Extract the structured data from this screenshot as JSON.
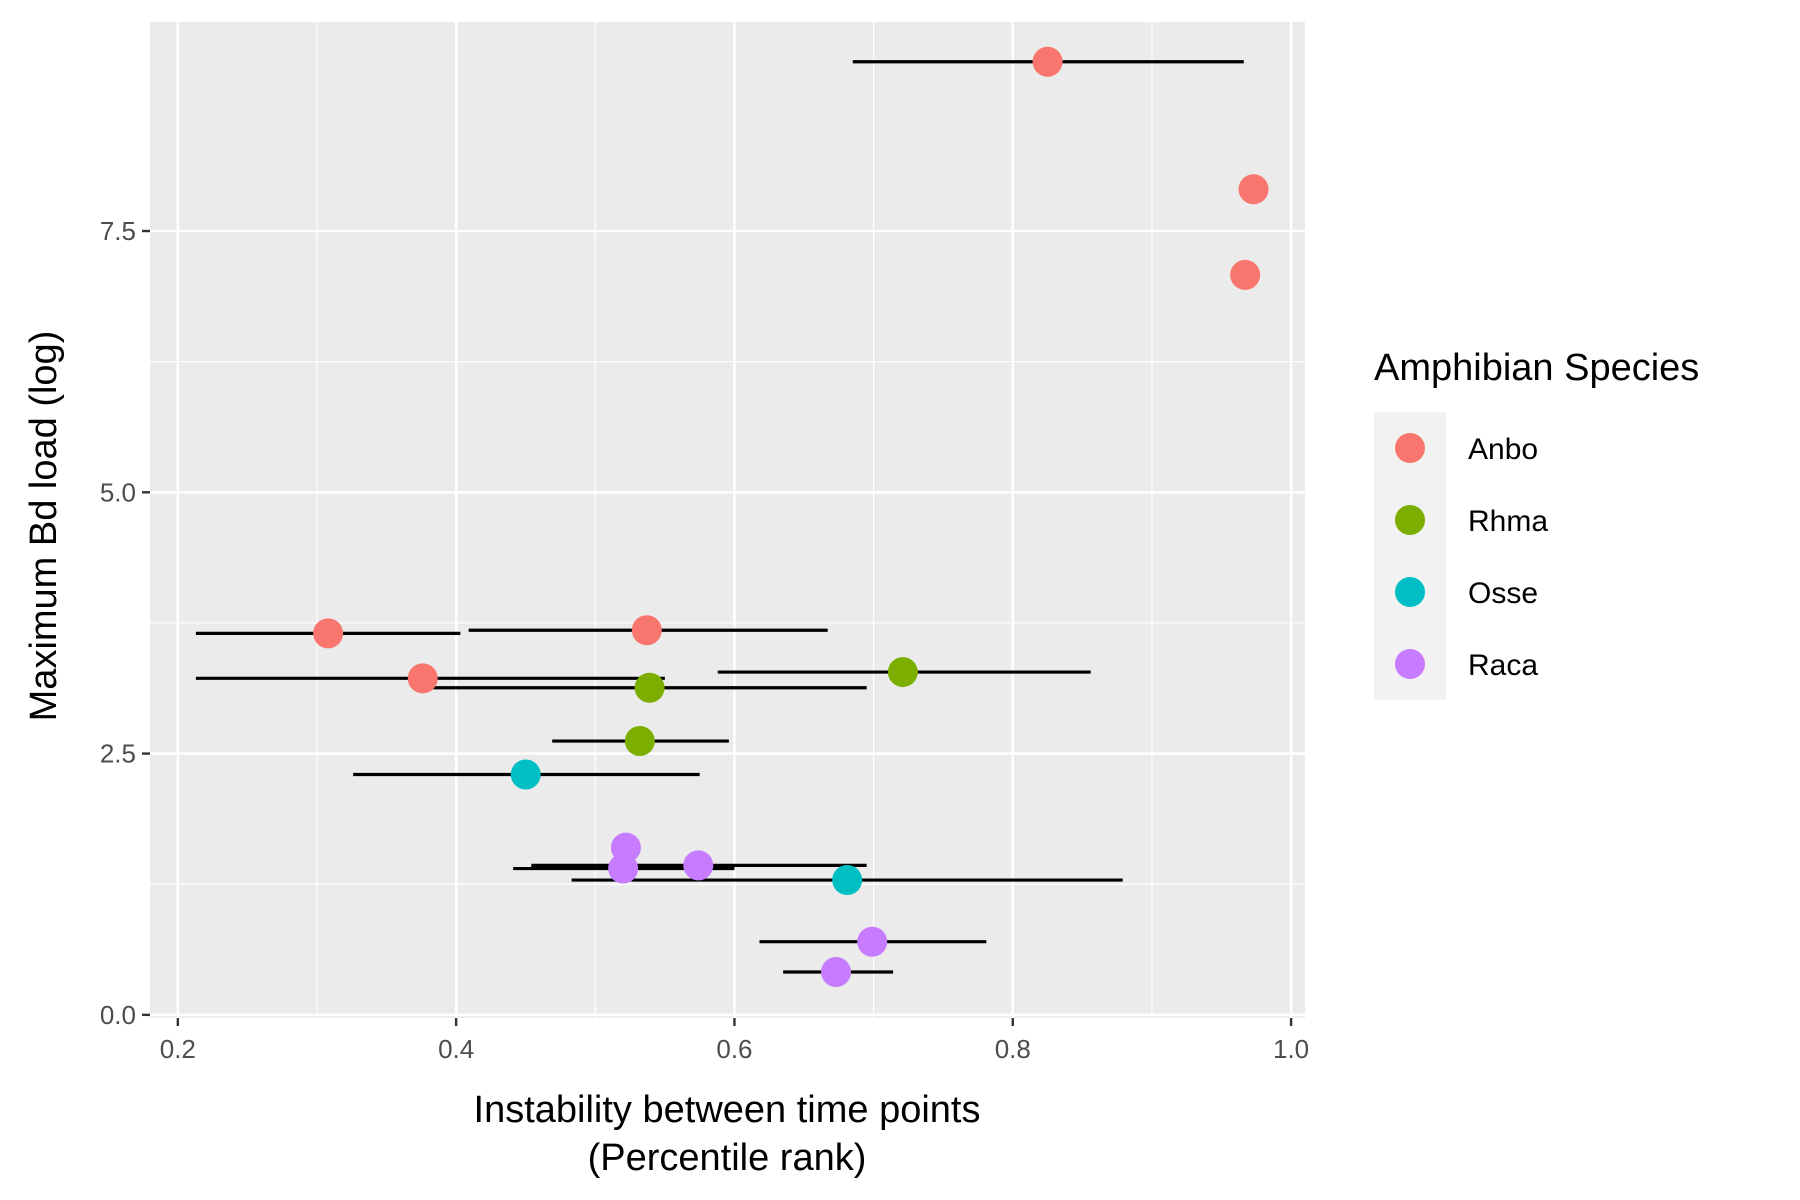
{
  "chart_data": {
    "type": "scatter",
    "title": "",
    "xlabel_line1": "Instability between time points",
    "xlabel_line2": "(Percentile rank)",
    "ylabel": "Maximum Bd load (log)",
    "xlim": [
      0.18,
      1.01
    ],
    "ylim": [
      -0.03,
      9.5
    ],
    "x_ticks": [
      0.2,
      0.4,
      0.6,
      0.8,
      1.0
    ],
    "x_tick_labels": [
      "0.2",
      "0.4",
      "0.6",
      "0.8",
      "1.0"
    ],
    "y_ticks": [
      0.0,
      2.5,
      5.0,
      7.5
    ],
    "y_tick_labels": [
      "0.0",
      "2.5",
      "5.0",
      "7.5"
    ],
    "grid": true,
    "legend": {
      "title": "Amphibian Species",
      "placement": "right",
      "items": [
        {
          "label": "Anbo",
          "color": "#F8766D"
        },
        {
          "label": "Rhma",
          "color": "#7CAE00"
        },
        {
          "label": "Osse",
          "color": "#00BFC4"
        },
        {
          "label": "Raca",
          "color": "#C77CFF"
        }
      ]
    },
    "series": [
      {
        "name": "Anbo",
        "color": "#F8766D",
        "points": [
          {
            "x": 0.825,
            "y": 9.12,
            "xmin": 0.685,
            "xmax": 0.966
          },
          {
            "x": 0.973,
            "y": 7.9
          },
          {
            "x": 0.967,
            "y": 7.08
          },
          {
            "x": 0.308,
            "y": 3.65,
            "xmin": 0.213,
            "xmax": 0.403
          },
          {
            "x": 0.537,
            "y": 3.68,
            "xmin": 0.409,
            "xmax": 0.667
          },
          {
            "x": 0.376,
            "y": 3.22,
            "xmin": 0.213,
            "xmax": 0.55
          }
        ]
      },
      {
        "name": "Rhma",
        "color": "#7CAE00",
        "points": [
          {
            "x": 0.721,
            "y": 3.28,
            "xmin": 0.588,
            "xmax": 0.856
          },
          {
            "x": 0.539,
            "y": 3.13,
            "xmin": 0.383,
            "xmax": 0.695
          },
          {
            "x": 0.532,
            "y": 2.62,
            "xmin": 0.469,
            "xmax": 0.596
          }
        ]
      },
      {
        "name": "Osse",
        "color": "#00BFC4",
        "points": [
          {
            "x": 0.45,
            "y": 2.3,
            "xmin": 0.326,
            "xmax": 0.575
          },
          {
            "x": 0.681,
            "y": 1.29,
            "xmin": 0.483,
            "xmax": 0.879
          }
        ]
      },
      {
        "name": "Raca",
        "color": "#C77CFF",
        "points": [
          {
            "x": 0.522,
            "y": 1.6
          },
          {
            "x": 0.574,
            "y": 1.43,
            "xmin": 0.454,
            "xmax": 0.695
          },
          {
            "x": 0.52,
            "y": 1.4,
            "xmin": 0.441,
            "xmax": 0.6
          },
          {
            "x": 0.699,
            "y": 0.7,
            "xmin": 0.618,
            "xmax": 0.781
          },
          {
            "x": 0.673,
            "y": 0.41,
            "xmin": 0.635,
            "xmax": 0.714
          }
        ]
      }
    ]
  }
}
